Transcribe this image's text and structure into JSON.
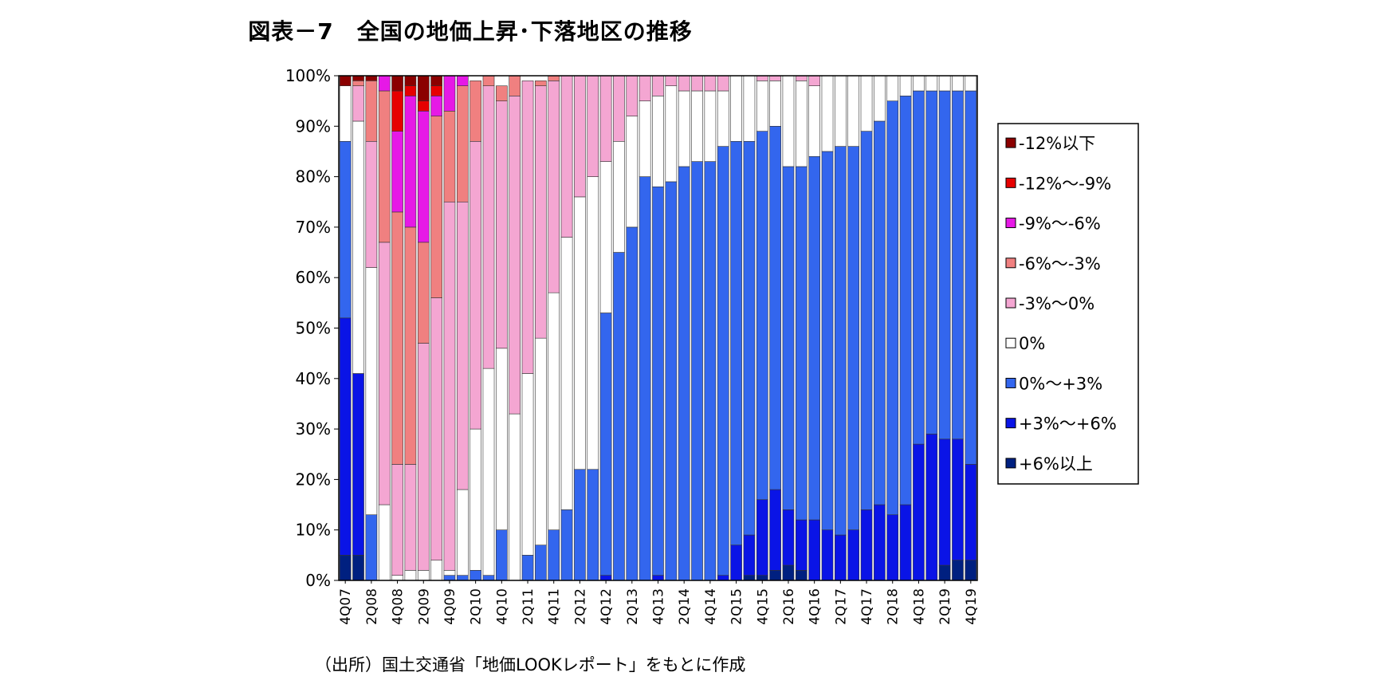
{
  "chart_data": {
    "type": "bar",
    "stacked": true,
    "percent": true,
    "title": "図表－7　全国の地価上昇･下落地区の推移",
    "source_note": "（出所）国土交通省「地価LOOKレポート」をもとに作成",
    "ylim": [
      0,
      100
    ],
    "y_ticks": [
      "0%",
      "10%",
      "20%",
      "30%",
      "40%",
      "50%",
      "60%",
      "70%",
      "80%",
      "90%",
      "100%"
    ],
    "x_tick_labels": [
      "4Q07",
      "2Q08",
      "4Q08",
      "2Q09",
      "4Q09",
      "2Q10",
      "4Q10",
      "2Q11",
      "4Q11",
      "2Q12",
      "4Q12",
      "2Q13",
      "4Q13",
      "2Q14",
      "4Q14",
      "2Q15",
      "4Q15",
      "2Q16",
      "4Q16",
      "2Q17",
      "4Q17",
      "2Q18",
      "4Q18",
      "2Q19",
      "4Q19"
    ],
    "categories": [
      "4Q07",
      "1Q08",
      "2Q08",
      "3Q08",
      "4Q08",
      "1Q09",
      "2Q09",
      "3Q09",
      "4Q09",
      "1Q10",
      "2Q10",
      "3Q10",
      "4Q10",
      "1Q11",
      "2Q11",
      "3Q11",
      "4Q11",
      "1Q12",
      "2Q12",
      "3Q12",
      "4Q12",
      "1Q13",
      "2Q13",
      "3Q13",
      "4Q13",
      "1Q14",
      "2Q14",
      "3Q14",
      "4Q14",
      "1Q15",
      "2Q15",
      "3Q15",
      "4Q15",
      "1Q16",
      "2Q16",
      "3Q16",
      "4Q16",
      "1Q17",
      "2Q17",
      "3Q17",
      "4Q17",
      "1Q18",
      "2Q18",
      "3Q18",
      "4Q18",
      "1Q19",
      "2Q19",
      "3Q19",
      "4Q19"
    ],
    "legend_position": "right",
    "series": [
      {
        "name": "+6%以上",
        "color": "#002080",
        "values": [
          5,
          5,
          0,
          0,
          0,
          0,
          0,
          0,
          0,
          0,
          0,
          0,
          0,
          0,
          0,
          0,
          0,
          0,
          0,
          0,
          0,
          0,
          0,
          0,
          0,
          0,
          0,
          0,
          0,
          0,
          0,
          1,
          1,
          2,
          3,
          2,
          0,
          0,
          0,
          0,
          0,
          0,
          0,
          0,
          0,
          0,
          3,
          4,
          4
        ]
      },
      {
        "name": "+3%～+6%",
        "color": "#0A14E6",
        "values": [
          47,
          36,
          0,
          0,
          0,
          0,
          0,
          0,
          0,
          0,
          0,
          0,
          0,
          0,
          0,
          0,
          0,
          0,
          0,
          0,
          1,
          0,
          0,
          0,
          1,
          0,
          0,
          0,
          0,
          1,
          7,
          8,
          15,
          16,
          11,
          10,
          12,
          10,
          9,
          10,
          14,
          15,
          13,
          15,
          27,
          29,
          25,
          24,
          19
        ]
      },
      {
        "name": "0%～+3%",
        "color": "#3366EE",
        "values": [
          35,
          0,
          13,
          0,
          0,
          0,
          0,
          0,
          1,
          1,
          2,
          1,
          10,
          0,
          5,
          7,
          10,
          14,
          22,
          22,
          52,
          65,
          70,
          80,
          77,
          79,
          82,
          83,
          83,
          85,
          80,
          78,
          73,
          72,
          68,
          70,
          72,
          75,
          77,
          76,
          75,
          76,
          82,
          81,
          70,
          68,
          69,
          69,
          74
        ]
      },
      {
        "name": "0%",
        "color": "#FFFFFF",
        "values": [
          11,
          50,
          49,
          15,
          1,
          2,
          2,
          4,
          1,
          17,
          28,
          41,
          36,
          33,
          36,
          41,
          47,
          54,
          54,
          58,
          30,
          22,
          22,
          15,
          18,
          19,
          15,
          14,
          14,
          11,
          13,
          13,
          10,
          9,
          18,
          17,
          14,
          15,
          14,
          14,
          11,
          9,
          5,
          4,
          3,
          3,
          3,
          3,
          3
        ]
      },
      {
        "name": "-3%～0%",
        "color": "#F4A6D2",
        "values": [
          0,
          7,
          25,
          52,
          22,
          21,
          45,
          52,
          73,
          57,
          57,
          56,
          49,
          63,
          58,
          50,
          42,
          32,
          24,
          20,
          17,
          13,
          8,
          5,
          4,
          2,
          3,
          3,
          3,
          3,
          0,
          0,
          1,
          1,
          0,
          1,
          2,
          0,
          0,
          0,
          0,
          0,
          0,
          0,
          0,
          0,
          0,
          0,
          0
        ]
      },
      {
        "name": "-6%～-3%",
        "color": "#F08080",
        "values": [
          0,
          1,
          12,
          30,
          50,
          47,
          20,
          36,
          18,
          23,
          12,
          2,
          3,
          4,
          0,
          1,
          1,
          0,
          0,
          0,
          0,
          0,
          0,
          0,
          0,
          0,
          0,
          0,
          0,
          0,
          0,
          0,
          0,
          0,
          0,
          0,
          0,
          0,
          0,
          0,
          0,
          0,
          0,
          0,
          0,
          0,
          0,
          0,
          0
        ]
      },
      {
        "name": "-9%～-6%",
        "color": "#E619E6",
        "values": [
          0,
          0,
          0,
          3,
          16,
          26,
          26,
          4,
          7,
          2,
          0,
          0,
          0,
          0,
          0,
          0,
          0,
          0,
          0,
          0,
          0,
          0,
          0,
          0,
          0,
          0,
          0,
          0,
          0,
          0,
          0,
          0,
          0,
          0,
          0,
          0,
          0,
          0,
          0,
          0,
          0,
          0,
          0,
          0,
          0,
          0,
          0,
          0,
          0
        ]
      },
      {
        "name": "-12%～-9%",
        "color": "#E60000",
        "values": [
          0,
          0,
          0,
          0,
          8,
          2,
          2,
          2,
          0,
          0,
          0,
          0,
          0,
          0,
          0,
          0,
          0,
          0,
          0,
          0,
          0,
          0,
          0,
          0,
          0,
          0,
          0,
          0,
          0,
          0,
          0,
          0,
          0,
          0,
          0,
          0,
          0,
          0,
          0,
          0,
          0,
          0,
          0,
          0,
          0,
          0,
          0,
          0,
          0
        ]
      },
      {
        "name": "-12%以下",
        "color": "#8B0000",
        "values": [
          2,
          1,
          1,
          0,
          3,
          2,
          5,
          2,
          0,
          0,
          0,
          0,
          0,
          0,
          0,
          0,
          0,
          0,
          0,
          0,
          0,
          0,
          0,
          0,
          0,
          0,
          0,
          0,
          0,
          0,
          0,
          0,
          0,
          0,
          0,
          0,
          0,
          0,
          0,
          0,
          0,
          0,
          0,
          0,
          0,
          0,
          0,
          0,
          0
        ]
      }
    ]
  }
}
